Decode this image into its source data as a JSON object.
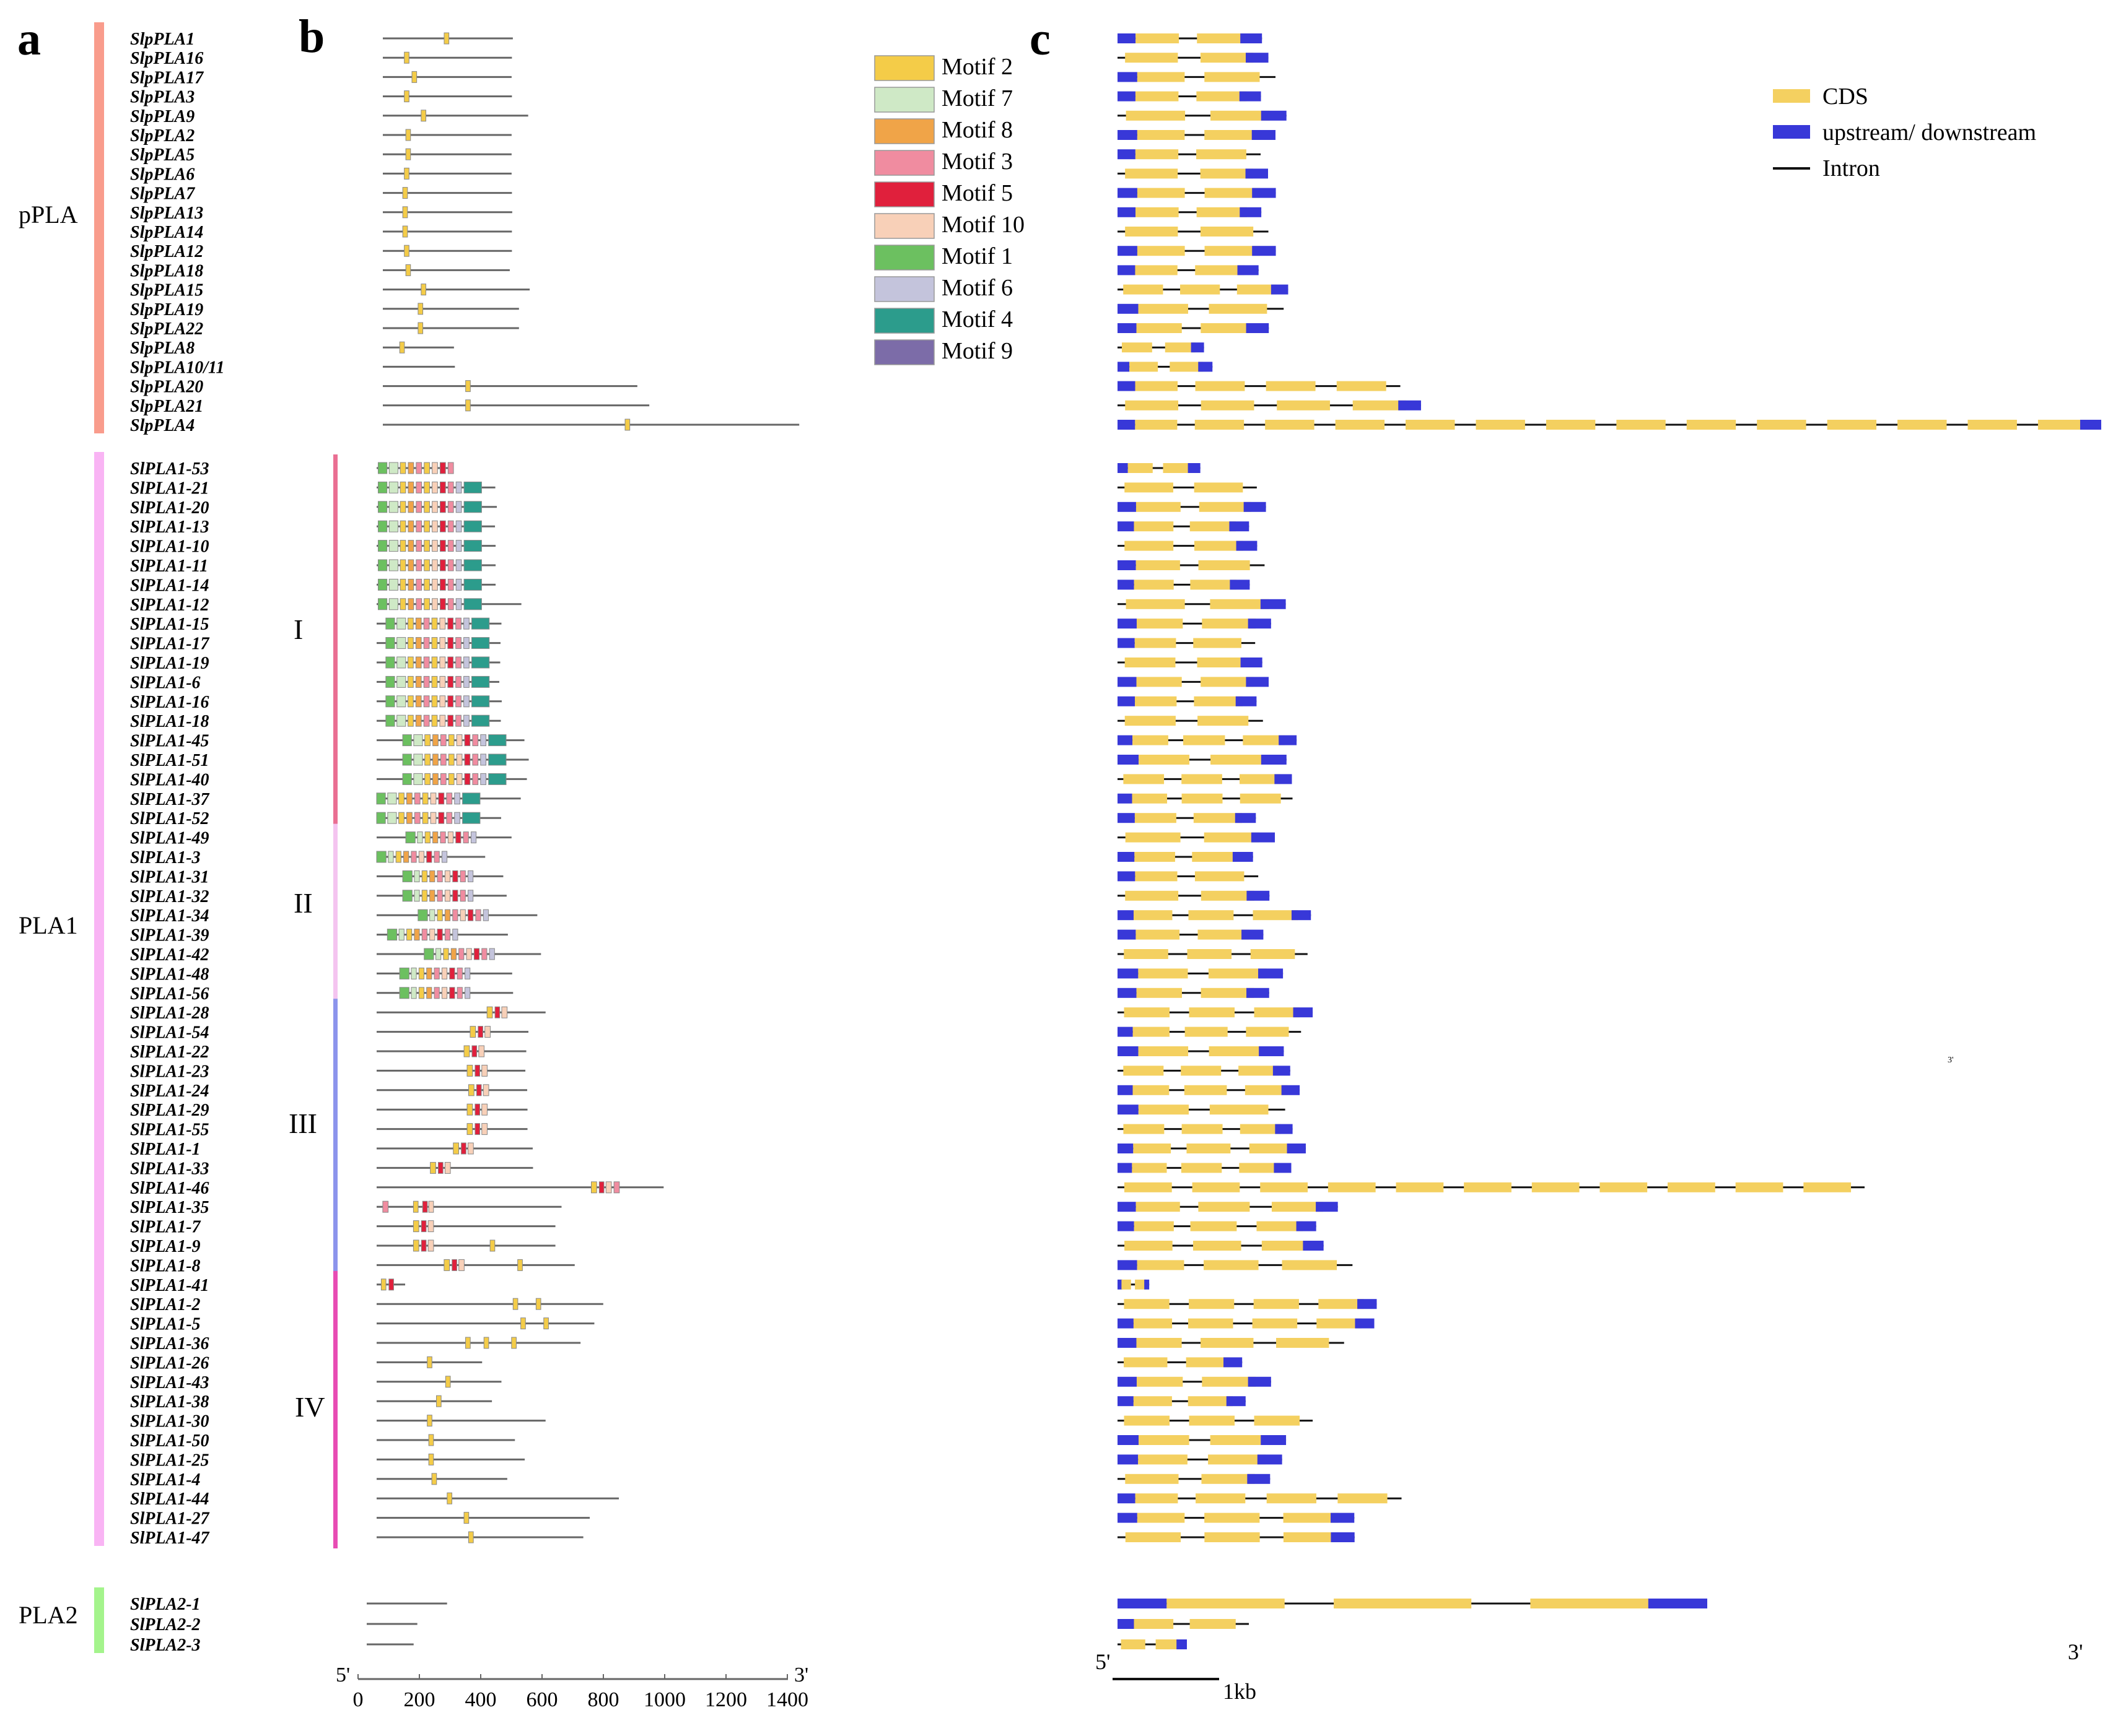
{
  "panels": {
    "a": "a",
    "b": "b",
    "c": "c"
  },
  "groups": [
    {
      "name": "pPLA",
      "color": "#f99c8c"
    },
    {
      "name": "PLA1",
      "color": "#f9b4f4"
    },
    {
      "name": "PLA2",
      "color": "#a4f48c"
    }
  ],
  "subgroups": [
    {
      "name": "I",
      "color": "#ea6f93"
    },
    {
      "name": "II",
      "color": "#f4c4f0"
    },
    {
      "name": "III",
      "color": "#8c94ec"
    },
    {
      "name": "IV",
      "color": "#e84cb4"
    }
  ],
  "genes": {
    "pPLA": [
      "SlpPLA1",
      "SlpPLA16",
      "SlpPLA17",
      "SlpPLA3",
      "SlpPLA9",
      "SlpPLA2",
      "SlpPLA5",
      "SlpPLA6",
      "SlpPLA7",
      "SlpPLA13",
      "SlpPLA14",
      "SlpPLA12",
      "SlpPLA18",
      "SlpPLA15",
      "SlpPLA19",
      "SlpPLA22",
      "SlpPLA8",
      "SlpPLA10/11",
      "SlpPLA20",
      "SlpPLA21",
      "SlpPLA4"
    ],
    "PLA1": [
      "SlPLA1-53",
      "SlPLA1-21",
      "SlPLA1-20",
      "SlPLA1-13",
      "SlPLA1-10",
      "SlPLA1-11",
      "SlPLA1-14",
      "SlPLA1-12",
      "SlPLA1-15",
      "SlPLA1-17",
      "SlPLA1-19",
      "SlPLA1-6",
      "SlPLA1-16",
      "SlPLA1-18",
      "SlPLA1-45",
      "SlPLA1-51",
      "SlPLA1-40",
      "SlPLA1-37",
      "SlPLA1-52",
      "SlPLA1-49",
      "SlPLA1-3",
      "SlPLA1-31",
      "SlPLA1-32",
      "SlPLA1-34",
      "SlPLA1-39",
      "SlPLA1-42",
      "SlPLA1-48",
      "SlPLA1-56",
      "SlPLA1-28",
      "SlPLA1-54",
      "SlPLA1-22",
      "SlPLA1-23",
      "SlPLA1-24",
      "SlPLA1-29",
      "SlPLA1-55",
      "SlPLA1-1",
      "SlPLA1-33",
      "SlPLA1-46",
      "SlPLA1-35",
      "SlPLA1-7",
      "SlPLA1-9",
      "SlPLA1-8",
      "SlPLA1-41",
      "SlPLA1-2",
      "SlPLA1-5",
      "SlPLA1-36",
      "SlPLA1-26",
      "SlPLA1-43",
      "SlPLA1-38",
      "SlPLA1-30",
      "SlPLA1-50",
      "SlPLA1-25",
      "SlPLA1-4",
      "SlPLA1-44",
      "SlPLA1-27",
      "SlPLA1-47"
    ],
    "PLA2": [
      "SlPLA2-1",
      "SlPLA2-2",
      "SlPLA2-3"
    ]
  },
  "protein_length_aa": {
    "pPLA": [
      424,
      421,
      420,
      421,
      474,
      420,
      420,
      420,
      421,
      422,
      421,
      421,
      414,
      479,
      444,
      444,
      232,
      235,
      830,
      869,
      1358
    ],
    "PLA1": [
      243,
      387,
      392,
      386,
      388,
      388,
      388,
      472,
      407,
      404,
      403,
      400,
      408,
      405,
      482,
      496,
      490,
      470,
      406,
      440,
      354,
      413,
      424,
      524,
      428,
      536,
      442,
      445,
      551,
      495,
      488,
      485,
      491,
      492,
      492,
      509,
      510,
      936,
      603,
      583,
      583,
      646,
      93,
      739,
      710,
      665,
      344,
      407,
      376,
      551,
      451,
      483,
      426,
      790,
      695,
      674
    ],
    "PLA2": [
      262,
      165,
      153
    ]
  },
  "motifs": [
    {
      "name": "Motif 2",
      "color": "#f4cc48"
    },
    {
      "name": "Motif 7",
      "color": "#cfe9c6"
    },
    {
      "name": "Motif 8",
      "color": "#f0a448"
    },
    {
      "name": "Motif 3",
      "color": "#f08ca0"
    },
    {
      "name": "Motif 5",
      "color": "#e0203c"
    },
    {
      "name": "Motif 10",
      "color": "#f8d0b8"
    },
    {
      "name": "Motif 1",
      "color": "#6cc060"
    },
    {
      "name": "Motif 6",
      "color": "#c4c4dc"
    },
    {
      "name": "Motif 4",
      "color": "#2c9c8c"
    },
    {
      "name": "Motif 9",
      "color": "#7c6ca8"
    }
  ],
  "axis_b": {
    "ticks": [
      "0",
      "200",
      "400",
      "600",
      "800",
      "1000",
      "1200",
      "1400"
    ],
    "start_label": "5'",
    "end_label": "3'"
  },
  "gene_structure_legend": [
    {
      "name": "CDS",
      "color": "#f4d060"
    },
    {
      "name": "upstream/ downstream",
      "color": "#3838d8"
    },
    {
      "name": "Intron",
      "color": "#111111"
    }
  ],
  "axis_c": {
    "start_label": "5'",
    "end_label": "3'",
    "scale_label": "1kb"
  },
  "stray_mark": "3'"
}
